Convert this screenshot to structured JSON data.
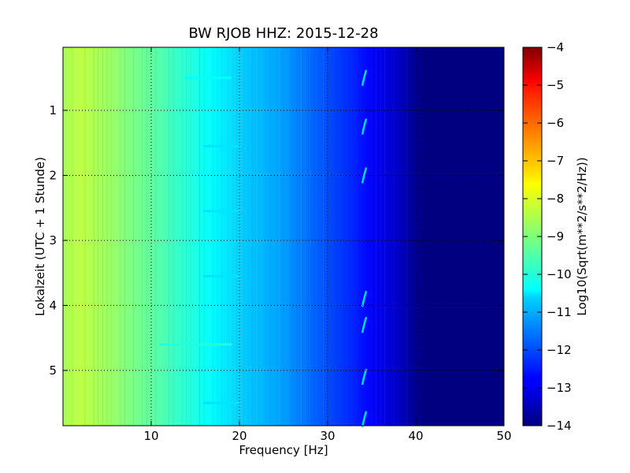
{
  "chart_data": {
    "type": "heatmap",
    "title": "BW RJOB HHZ: 2015-12-28",
    "xlabel": "Frequency [Hz]",
    "ylabel": "Lokalzeit (UTC + 1 Stunde)",
    "xlim": [
      0,
      50
    ],
    "ylim": [
      5.85,
      0.03
    ],
    "y_axis_inverted": true,
    "x_ticks": [
      10,
      20,
      30,
      40,
      50
    ],
    "x_tick_labels": [
      "10",
      "20",
      "30",
      "40",
      "50"
    ],
    "y_ticks": [
      1,
      2,
      3,
      4,
      5
    ],
    "y_tick_labels": [
      "1",
      "2",
      "3",
      "4",
      "5"
    ],
    "grid": true,
    "colormap": "jet",
    "colorbar": {
      "label": "Log10(Sqrt(m**2/s**2/Hz))",
      "range": [
        -14,
        -4
      ],
      "ticks": [
        -4,
        -5,
        -6,
        -7,
        -8,
        -9,
        -10,
        -11,
        -12,
        -13,
        -14
      ],
      "tick_labels": [
        "−4",
        "−5",
        "−6",
        "−7",
        "−8",
        "−9",
        "−10",
        "−11",
        "−12",
        "−13",
        "−14"
      ]
    },
    "frequency_profile_hz": [
      0,
      2,
      5,
      10,
      15,
      20,
      25,
      28,
      30,
      33,
      35,
      38,
      39.5,
      41,
      50
    ],
    "level_profile": [
      -8.6,
      -8.4,
      -8.7,
      -9.3,
      -10.0,
      -10.7,
      -11.2,
      -11.7,
      -12.0,
      -12.4,
      -12.8,
      -13.3,
      -13.7,
      -14.0,
      -14.0
    ],
    "horizontal_streaks": [
      {
        "t": 0.5,
        "f_start": 14,
        "f_end": 19,
        "level": -10.2
      },
      {
        "t": 1.55,
        "f_start": 16,
        "f_end": 20,
        "level": -10.5
      },
      {
        "t": 2.55,
        "f_start": 16,
        "f_end": 20,
        "level": -10.5
      },
      {
        "t": 3.55,
        "f_start": 16,
        "f_end": 20,
        "level": -10.5
      },
      {
        "t": 4.6,
        "f_start": 11,
        "f_end": 19,
        "level": -9.9
      },
      {
        "t": 5.5,
        "f_start": 16,
        "f_end": 20,
        "level": -10.5
      }
    ],
    "tonal_line_hz": 34.2,
    "tonal_line_times": [
      0.5,
      1.25,
      2.0,
      3.9,
      4.3,
      5.1,
      5.75
    ]
  }
}
